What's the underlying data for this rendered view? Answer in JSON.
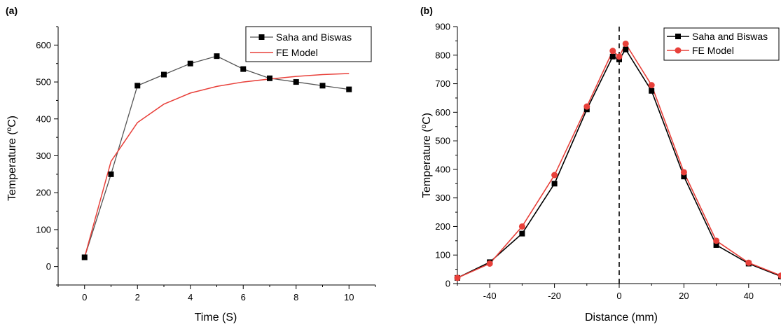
{
  "chart_data": [
    {
      "panel_label": "(a)",
      "type": "line",
      "xlabel": "Time (S)",
      "ylabel_main": "Temperature (",
      "ylabel_sup": "o",
      "ylabel_end": "C)",
      "xlim": [
        -1,
        11
      ],
      "ylim": [
        -50,
        650
      ],
      "xticks": [
        0,
        2,
        4,
        6,
        8,
        10
      ],
      "yticks": [
        0,
        100,
        200,
        300,
        400,
        500,
        600
      ],
      "grid": false,
      "legend_position": "top-right",
      "series": [
        {
          "name": "Saha and Biswas",
          "color": "#555555",
          "marker": "square",
          "x": [
            0,
            1,
            2,
            3,
            4,
            5,
            6,
            7,
            8,
            9,
            10
          ],
          "y": [
            25,
            250,
            490,
            520,
            550,
            570,
            535,
            510,
            500,
            490,
            480
          ]
        },
        {
          "name": "FE Model",
          "color": "#e8403a",
          "marker": "none",
          "x": [
            0,
            1,
            2,
            3,
            4,
            5,
            6,
            7,
            8,
            9,
            10
          ],
          "y": [
            25,
            285,
            390,
            440,
            470,
            488,
            500,
            508,
            515,
            520,
            523
          ]
        }
      ]
    },
    {
      "panel_label": "(b)",
      "type": "line",
      "xlabel": "Distance (mm)",
      "ylabel_main": "Temperature (",
      "ylabel_sup": "o",
      "ylabel_end": "C)",
      "xlim": [
        -50,
        50
      ],
      "ylim": [
        0,
        900
      ],
      "xticks": [
        -40,
        -20,
        0,
        20,
        40
      ],
      "yticks": [
        0,
        100,
        200,
        300,
        400,
        500,
        600,
        700,
        800,
        900
      ],
      "grid": false,
      "legend_position": "top-right",
      "reference_line": {
        "x": 0,
        "style": "dashed",
        "color": "#000000"
      },
      "series": [
        {
          "name": "Saha and Biswas",
          "color": "#000000",
          "marker": "square",
          "x": [
            -50,
            -40,
            -30,
            -20,
            -10,
            -2,
            0,
            2,
            10,
            20,
            30,
            40,
            50
          ],
          "y": [
            20,
            75,
            175,
            350,
            610,
            795,
            785,
            820,
            675,
            375,
            135,
            70,
            25
          ]
        },
        {
          "name": "FE Model",
          "color": "#e8403a",
          "marker": "circle",
          "x": [
            -50,
            -40,
            -30,
            -20,
            -10,
            -2,
            0,
            2,
            10,
            20,
            30,
            40,
            50
          ],
          "y": [
            20,
            70,
            200,
            380,
            620,
            815,
            795,
            840,
            695,
            390,
            150,
            73,
            28
          ]
        }
      ]
    }
  ]
}
